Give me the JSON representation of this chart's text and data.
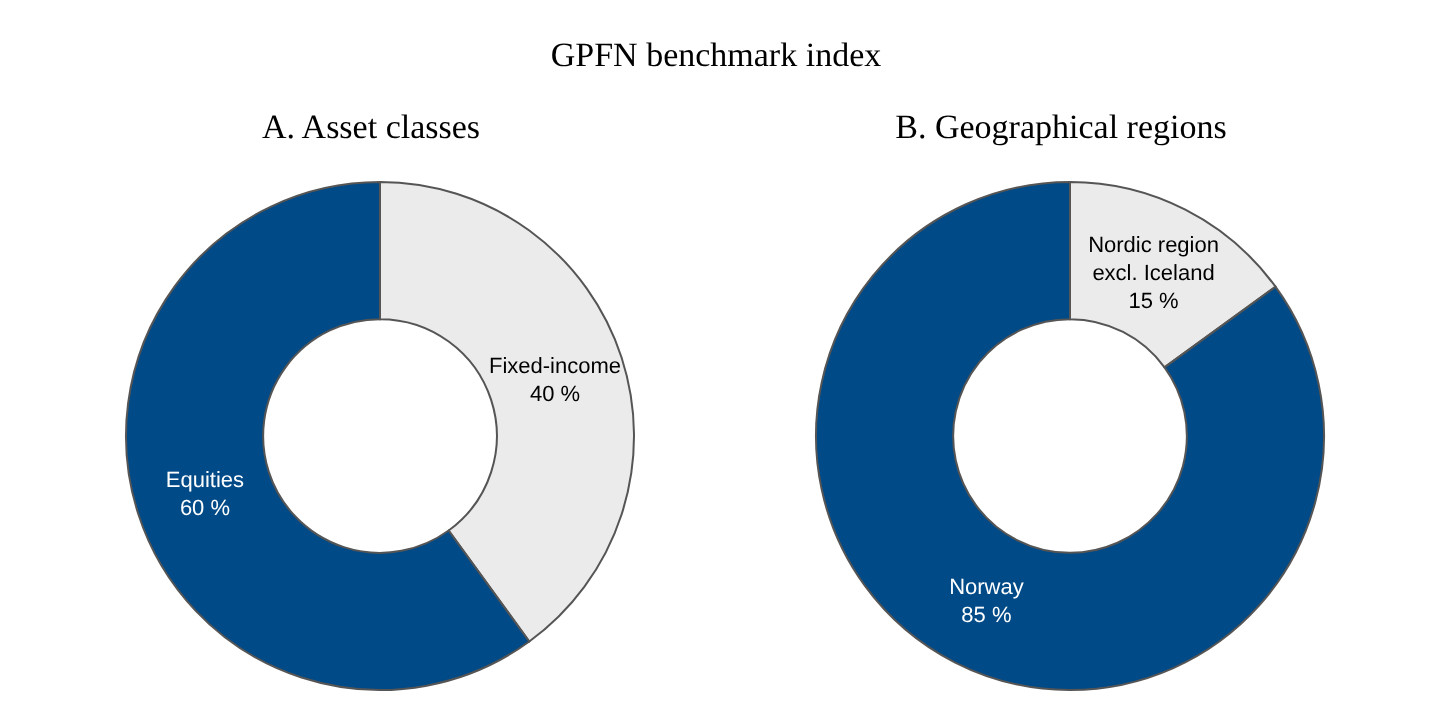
{
  "chart_data": [
    {
      "type": "donut",
      "title": "GPFN benchmark index",
      "subtitle": "A. Asset classes",
      "categories": [
        "Fixed-income",
        "Equities"
      ],
      "values": [
        40,
        60
      ],
      "colors": [
        "#ebebeb",
        "#004a87"
      ],
      "value_labels": [
        "40 %",
        "60 %"
      ],
      "legend": false
    },
    {
      "type": "donut",
      "title": "B. Geographical regions",
      "categories": [
        "Nordic region excl. Iceland",
        "Norway"
      ],
      "values": [
        15,
        85
      ],
      "colors": [
        "#ebebeb",
        "#004a87"
      ],
      "value_labels": [
        "15 %",
        "85 %"
      ],
      "legend": false
    }
  ]
}
